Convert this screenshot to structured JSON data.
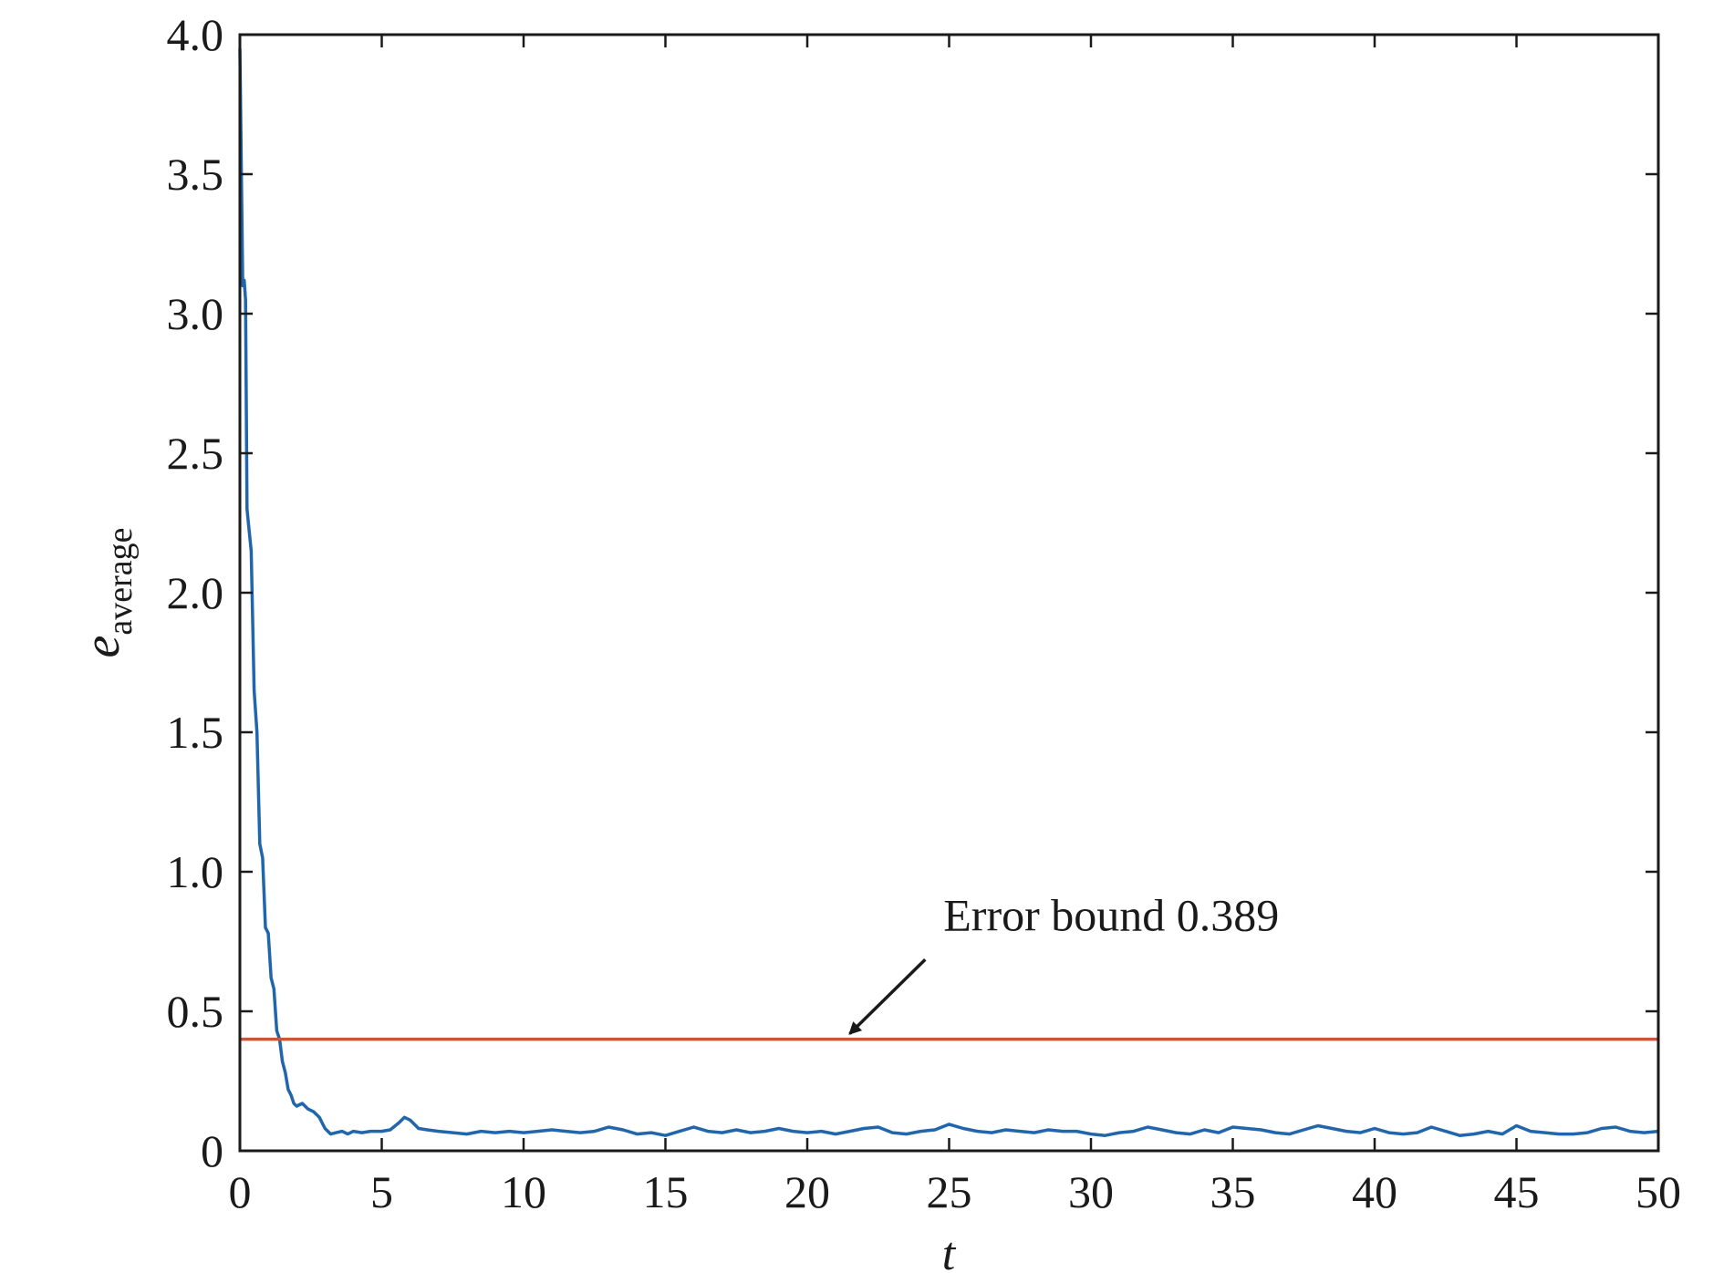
{
  "chart_data": {
    "type": "line",
    "title": "",
    "xlabel": "t",
    "ylabel": {
      "main": "e",
      "subscript": "average"
    },
    "xlim": [
      0,
      50
    ],
    "ylim": [
      0,
      4.0
    ],
    "grid": false,
    "x_ticks": [
      0,
      5,
      10,
      15,
      20,
      25,
      30,
      35,
      40,
      45,
      50
    ],
    "x_tick_labels": [
      "0",
      "5",
      "10",
      "15",
      "20",
      "25",
      "30",
      "35",
      "40",
      "45",
      "50"
    ],
    "y_ticks": [
      0,
      0.5,
      1.0,
      1.5,
      2.0,
      2.5,
      3.0,
      3.5,
      4.0
    ],
    "y_tick_labels": [
      "0",
      "0.5",
      "1.0",
      "1.5",
      "2.0",
      "2.5",
      "3.0",
      "3.5",
      "4.0"
    ],
    "series": [
      {
        "color": "#2166ac",
        "x": [
          0,
          0.1,
          0.15,
          0.2,
          0.25,
          0.3,
          0.4,
          0.5,
          0.6,
          0.7,
          0.8,
          0.9,
          1.0,
          1.1,
          1.2,
          1.3,
          1.4,
          1.5,
          1.6,
          1.7,
          1.8,
          1.9,
          2.0,
          2.2,
          2.4,
          2.6,
          2.8,
          3.0,
          3.2,
          3.4,
          3.6,
          3.8,
          4.0,
          4.3,
          4.6,
          5.0,
          5.3,
          5.6,
          5.8,
          6.0,
          6.3,
          6.6,
          7.0,
          7.5,
          8.0,
          8.5,
          9.0,
          9.5,
          10.0,
          10.5,
          11.0,
          11.5,
          12.0,
          12.5,
          13.0,
          13.5,
          14.0,
          14.5,
          15.0,
          15.5,
          16.0,
          16.5,
          17.0,
          17.5,
          18.0,
          18.5,
          19.0,
          19.5,
          20.0,
          20.5,
          21.0,
          21.5,
          22.0,
          22.5,
          23.0,
          23.5,
          24.0,
          24.5,
          25.0,
          25.5,
          26.0,
          26.5,
          27.0,
          27.5,
          28.0,
          28.5,
          29.0,
          29.5,
          30.0,
          30.5,
          31.0,
          31.5,
          32.0,
          32.5,
          33.0,
          33.5,
          34.0,
          34.5,
          35.0,
          35.5,
          36.0,
          36.5,
          37.0,
          37.5,
          38.0,
          38.5,
          39.0,
          39.5,
          40.0,
          40.5,
          41.0,
          41.5,
          42.0,
          42.5,
          43.0,
          43.5,
          44.0,
          44.5,
          45.0,
          45.5,
          46.0,
          46.5,
          47.0,
          47.5,
          48.0,
          48.5,
          49.0,
          49.5,
          50.0
        ],
        "values": [
          3.95,
          3.1,
          3.12,
          3.05,
          2.3,
          2.25,
          2.15,
          1.65,
          1.5,
          1.1,
          1.05,
          0.8,
          0.78,
          0.62,
          0.58,
          0.43,
          0.4,
          0.32,
          0.28,
          0.22,
          0.2,
          0.17,
          0.16,
          0.17,
          0.15,
          0.14,
          0.12,
          0.08,
          0.06,
          0.065,
          0.07,
          0.06,
          0.07,
          0.065,
          0.07,
          0.07,
          0.075,
          0.1,
          0.12,
          0.11,
          0.08,
          0.075,
          0.07,
          0.065,
          0.06,
          0.07,
          0.065,
          0.07,
          0.065,
          0.07,
          0.075,
          0.07,
          0.065,
          0.07,
          0.085,
          0.075,
          0.06,
          0.065,
          0.055,
          0.07,
          0.085,
          0.07,
          0.065,
          0.075,
          0.065,
          0.07,
          0.08,
          0.07,
          0.065,
          0.07,
          0.06,
          0.07,
          0.08,
          0.085,
          0.065,
          0.06,
          0.07,
          0.075,
          0.095,
          0.08,
          0.07,
          0.065,
          0.075,
          0.07,
          0.065,
          0.075,
          0.07,
          0.07,
          0.06,
          0.055,
          0.065,
          0.07,
          0.085,
          0.075,
          0.065,
          0.06,
          0.075,
          0.065,
          0.085,
          0.08,
          0.075,
          0.065,
          0.06,
          0.075,
          0.09,
          0.08,
          0.07,
          0.065,
          0.08,
          0.065,
          0.06,
          0.065,
          0.085,
          0.07,
          0.055,
          0.06,
          0.07,
          0.06,
          0.09,
          0.07,
          0.065,
          0.06,
          0.06,
          0.065,
          0.08,
          0.085,
          0.07,
          0.065,
          0.07
        ]
      },
      {
        "color": "#c8553d",
        "x": [
          0,
          50
        ],
        "values": [
          0.4,
          0.4
        ]
      }
    ],
    "annotations": [
      {
        "text": "Error bound 0.389",
        "points_to": {
          "x": 21.5,
          "y": 0.42
        },
        "text_at": {
          "x": 24.8,
          "y": 0.79
        }
      }
    ]
  }
}
